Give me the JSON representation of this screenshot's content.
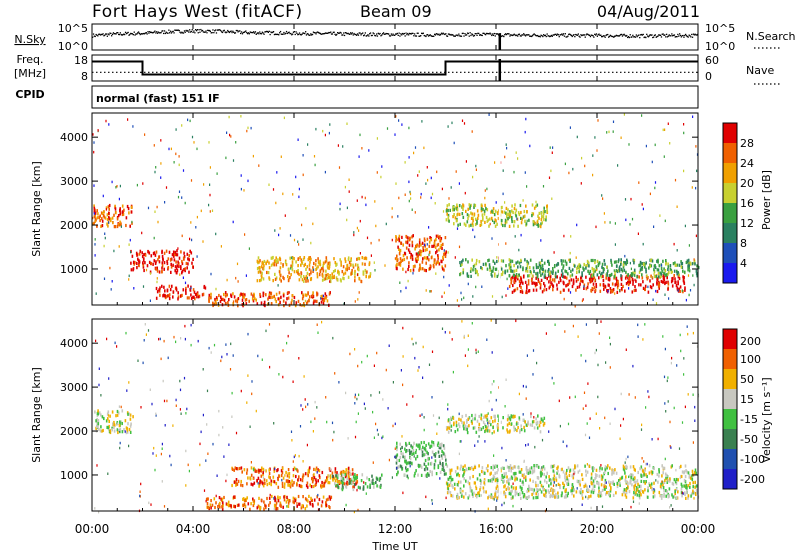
{
  "header": {
    "station": "Fort Hays West (fitACF)",
    "beam": "Beam 09",
    "date": "04/Aug/2011"
  },
  "chart_data": [
    {
      "type": "line",
      "panel": "noise",
      "ylabel_left": "N.Sky",
      "ylabel_right": "N.Search",
      "left_ticks": [
        "10^5",
        "10^0"
      ],
      "right_ticks": [
        "10^5",
        "10^0"
      ],
      "right_legend_style": "dotted",
      "x_hours": [
        0,
        1,
        2,
        3,
        4,
        5,
        6,
        7,
        8,
        9,
        10,
        11,
        12,
        13,
        14,
        15,
        16,
        17,
        18,
        19,
        20,
        21,
        22,
        23,
        24
      ],
      "values_log10": [
        3.2,
        3.6,
        3.8,
        4.2,
        4.4,
        4.3,
        4.0,
        3.9,
        3.8,
        3.7,
        3.6,
        3.5,
        3.5,
        3.4,
        3.4,
        3.5,
        3.4,
        3.3,
        3.3,
        3.2,
        3.2,
        3.1,
        3.1,
        3.2,
        3.2
      ],
      "gap_marker_hour": 16.15
    },
    {
      "type": "line",
      "panel": "frequency",
      "ylabel_left": "Freq.\n[MHz]",
      "ylabel_right": "Nave",
      "left_ticks": [
        "18",
        "8"
      ],
      "right_ticks": [
        "60",
        "0"
      ],
      "right_legend_style": "dotted",
      "freq_steps": [
        {
          "start": 0,
          "end": 2.0,
          "mhz": 16
        },
        {
          "start": 2.0,
          "end": 14.0,
          "mhz": 10
        },
        {
          "start": 14.0,
          "end": 24,
          "mhz": 16
        }
      ],
      "nave": 20,
      "cpid_label": "CPID",
      "cpid_text": "normal (fast) 151 IF"
    },
    {
      "type": "heatmap",
      "panel": "power",
      "ylabel": "Slant Range [km]",
      "ylim": [
        180,
        4550
      ],
      "y_ticks": [
        1000,
        2000,
        3000,
        4000
      ],
      "colorbar_label": "Power [dB]",
      "colorbar_ticks": [
        4,
        8,
        12,
        16,
        20,
        24,
        28
      ],
      "colorbar_colors": [
        "#1a1aee",
        "#1e4fb8",
        "#2a8060",
        "#3aa040",
        "#c8d030",
        "#f0a000",
        "#f06000",
        "#e00000"
      ],
      "scatter_bands": [
        {
          "t0": 0,
          "t1": 1.6,
          "r0": 2000,
          "r1": 2500,
          "level": 6
        },
        {
          "t0": 1.5,
          "t1": 4.0,
          "r0": 950,
          "r1": 1450,
          "level": 7
        },
        {
          "t0": 2.5,
          "t1": 4.5,
          "r0": 350,
          "r1": 650,
          "level": 7
        },
        {
          "t0": 4.5,
          "t1": 9.5,
          "r0": 200,
          "r1": 500,
          "level": 6
        },
        {
          "t0": 6.5,
          "t1": 11.0,
          "r0": 750,
          "r1": 1300,
          "level": 5
        },
        {
          "t0": 12.0,
          "t1": 14.0,
          "r0": 1000,
          "r1": 1800,
          "level": 6
        },
        {
          "t0": 14.0,
          "t1": 18.0,
          "r0": 2000,
          "r1": 2500,
          "level": 4
        },
        {
          "t0": 16.5,
          "t1": 23.5,
          "r0": 500,
          "r1": 900,
          "level": 7
        },
        {
          "t0": 14.5,
          "t1": 24,
          "r0": 850,
          "r1": 1250,
          "level": 3
        }
      ]
    },
    {
      "type": "heatmap",
      "panel": "velocity",
      "ylabel": "Slant Range [km]",
      "ylim": [
        180,
        4550
      ],
      "y_ticks": [
        1000,
        2000,
        3000,
        4000
      ],
      "colorbar_label": "Velocity [m s⁻¹]",
      "colorbar_ticks": [
        200,
        100,
        50,
        15,
        -15,
        -50,
        -100,
        -200
      ],
      "colorbar_colors": [
        "#2020c8",
        "#2050b0",
        "#3a8050",
        "#40c040",
        "#c8c8c0",
        "#f0b000",
        "#f06000",
        "#e00000"
      ],
      "scatter_bands": [
        {
          "t0": 0,
          "t1": 1.6,
          "r0": 2000,
          "r1": 2500,
          "level": 4
        },
        {
          "t0": 5.5,
          "t1": 10.5,
          "r0": 750,
          "r1": 1200,
          "level": 6
        },
        {
          "t0": 9.5,
          "t1": 11.5,
          "r0": 700,
          "r1": 1050,
          "level": 3
        },
        {
          "t0": 4.5,
          "t1": 9.5,
          "r0": 250,
          "r1": 550,
          "level": 6
        },
        {
          "t0": 12.0,
          "t1": 14.0,
          "r0": 1000,
          "r1": 1800,
          "level": 3
        },
        {
          "t0": 14.0,
          "t1": 18.0,
          "r0": 2000,
          "r1": 2400,
          "level": 4
        },
        {
          "t0": 14.0,
          "t1": 24,
          "r0": 500,
          "r1": 1250,
          "level": 4
        }
      ],
      "xlabel": "Time UT"
    }
  ],
  "x_axis": {
    "tick_labels": [
      "00:00",
      "04:00",
      "08:00",
      "12:00",
      "16:00",
      "20:00",
      "00:00"
    ],
    "tick_hours": [
      0,
      4,
      8,
      12,
      16,
      20,
      24
    ],
    "xlabel": "Time UT"
  }
}
